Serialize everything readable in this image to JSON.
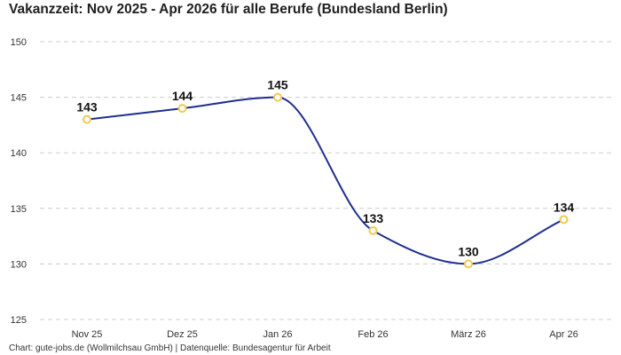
{
  "chart_data": {
    "type": "line",
    "title": "Vakanzzeit: Nov 2025 - Apr 2026 für alle Berufe (Bundesland Berlin)",
    "xlabel": "",
    "ylabel": "",
    "categories": [
      "Nov 25",
      "Dez 25",
      "Jan 26",
      "Feb 26",
      "März 26",
      "Apr 26"
    ],
    "series": [
      {
        "values": [
          143,
          144,
          145,
          133,
          130,
          134
        ]
      }
    ],
    "ylim": [
      125,
      150
    ],
    "yticks": [
      125,
      130,
      135,
      140,
      145,
      150
    ],
    "grid": true,
    "legend": "none",
    "data_labels": true,
    "colors": {
      "line": "#1f2f8f",
      "marker": "#f2c94c",
      "grid": "#cccccc"
    }
  },
  "footer": "Chart: gute-jobs.de (Wollmilchsau GmbH) | Datenquelle: Bundesagentur für Arbeit"
}
